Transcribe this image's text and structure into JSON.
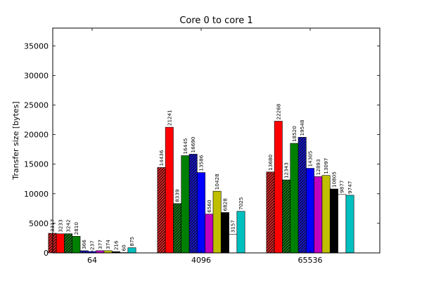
{
  "chart_data": {
    "type": "bar",
    "title": "Core 0 to core 1",
    "xlabel": "",
    "ylabel": "Transfer size [bytes]",
    "categories": [
      "64",
      "4096",
      "65536"
    ],
    "ylim": [
      0,
      38000
    ],
    "yticks": [
      0,
      5000,
      10000,
      15000,
      20000,
      25000,
      30000,
      35000
    ],
    "grid": false,
    "legend": "none",
    "series": [
      {
        "color": "#d62728",
        "hatch": true,
        "values": [
          3317,
          14436,
          13680
        ]
      },
      {
        "color": "#ff0000",
        "hatch": false,
        "values": [
          3233,
          21241,
          22268
        ]
      },
      {
        "color": "#1a7a1a",
        "hatch": true,
        "values": [
          3242,
          8339,
          12343
        ]
      },
      {
        "color": "#008000",
        "hatch": false,
        "values": [
          2810,
          16445,
          18520
        ]
      },
      {
        "color": "#1a1acc",
        "hatch": true,
        "values": [
          366,
          16690,
          19548
        ]
      },
      {
        "color": "#0000ff",
        "hatch": false,
        "values": [
          237,
          13586,
          14305
        ]
      },
      {
        "color": "#bf00bf",
        "hatch": false,
        "values": [
          377,
          6560,
          12893
        ]
      },
      {
        "color": "#bfbf00",
        "hatch": false,
        "values": [
          374,
          10428,
          13097
        ]
      },
      {
        "color": "#000000",
        "hatch": false,
        "values": [
          216,
          6828,
          10805
        ]
      },
      {
        "color": "#ffffff",
        "hatch": false,
        "values": [
          60,
          3157,
          9877
        ]
      },
      {
        "color": "#00bfbf",
        "hatch": false,
        "values": [
          875,
          7025,
          9747
        ]
      }
    ]
  }
}
